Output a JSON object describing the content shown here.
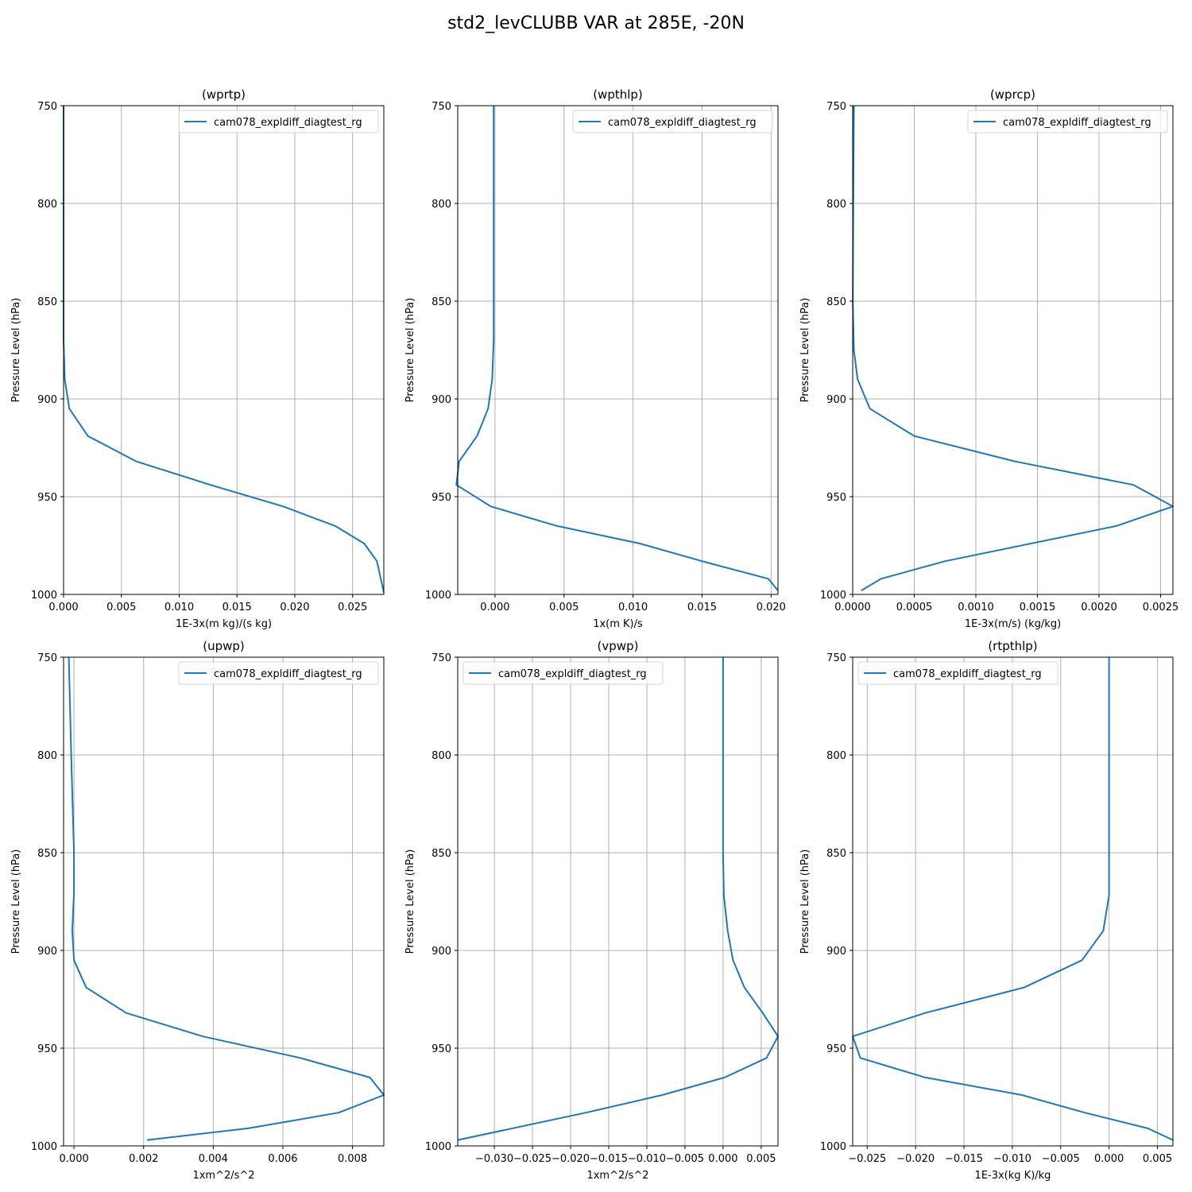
{
  "figure": {
    "title": "std2_levCLUBB VAR at 285E, -20N",
    "line_color": "#1f77b4"
  },
  "chart_data": [
    {
      "type": "line",
      "title": "(wprtp)",
      "xlabel": "1E-3x(m kg)/(s kg)",
      "ylabel": "Pressure Level (hPa)",
      "xlim": [
        0,
        0.0277
      ],
      "ylim": [
        1000,
        750
      ],
      "xticks": [
        0,
        0.005,
        0.01,
        0.015,
        0.02,
        0.025
      ],
      "xtick_labels": [
        "0.000",
        "0.005",
        "0.010",
        "0.015",
        "0.020",
        "0.025"
      ],
      "yticks": [
        750,
        800,
        850,
        900,
        950,
        1000
      ],
      "ytick_labels": [
        "750",
        "800",
        "850",
        "900",
        "950",
        "1000"
      ],
      "grid": true,
      "legend_position": "upper-right",
      "series": [
        {
          "name": "cam078_expldiff_diagtest_rg",
          "x": [
            0,
            0,
            0,
            0,
            0.0001,
            0.0005,
            0.0021,
            0.0063,
            0.0127,
            0.019,
            0.0235,
            0.026,
            0.0271,
            0.0277
          ],
          "y": [
            750,
            800,
            850,
            870,
            890,
            905,
            919,
            932,
            944,
            955,
            965,
            974,
            983,
            999
          ]
        }
      ]
    },
    {
      "type": "line",
      "title": "(wpthlp)",
      "xlabel": "1x(m K)/s",
      "ylabel": "Pressure Level (hPa)",
      "xlim": [
        -0.0027,
        0.0205
      ],
      "ylim": [
        1000,
        750
      ],
      "xticks": [
        0,
        0.005,
        0.01,
        0.015,
        0.02
      ],
      "xtick_labels": [
        "0.000",
        "0.005",
        "0.010",
        "0.015",
        "0.020"
      ],
      "yticks": [
        750,
        800,
        850,
        900,
        950,
        1000
      ],
      "ytick_labels": [
        "750",
        "800",
        "850",
        "900",
        "950",
        "1000"
      ],
      "grid": true,
      "legend_position": "upper-right",
      "series": [
        {
          "name": "cam078_expldiff_diagtest_rg",
          "x": [
            -0.0001,
            -0.0001,
            -0.0001,
            -0.0001,
            -0.0002,
            -0.0005,
            -0.0013,
            -0.0026,
            -0.0028,
            -0.0003,
            0.0045,
            0.0105,
            0.015,
            0.0198,
            0.0205
          ],
          "y": [
            750,
            800,
            850,
            870,
            890,
            905,
            919,
            932,
            944,
            955,
            965,
            974,
            983,
            992,
            998
          ]
        }
      ]
    },
    {
      "type": "line",
      "title": "(wprcp)",
      "xlabel": "1E-3x(m/s) (kg/kg)",
      "ylabel": "Pressure Level (hPa)",
      "xlim": [
        0,
        0.0026
      ],
      "ylim": [
        1000,
        750
      ],
      "xticks": [
        0,
        0.0005,
        0.001,
        0.0015,
        0.002,
        0.0025
      ],
      "xtick_labels": [
        "0.0000",
        "0.0005",
        "0.0010",
        "0.0015",
        "0.0020",
        "0.0025"
      ],
      "yticks": [
        750,
        800,
        850,
        900,
        950,
        1000
      ],
      "ytick_labels": [
        "750",
        "800",
        "850",
        "900",
        "950",
        "1000"
      ],
      "grid": true,
      "legend_position": "upper-right",
      "series": [
        {
          "name": "cam078_expldiff_diagtest_rg",
          "x": [
            1e-05,
            5e-06,
            1e-06,
            1e-05,
            4e-05,
            0.00014,
            0.0005,
            0.00132,
            0.00228,
            0.0026,
            0.00214,
            0.00075,
            0.00023,
            7e-05
          ],
          "y": [
            750,
            800,
            850,
            875,
            890,
            905,
            919,
            932,
            944,
            955,
            965,
            983,
            992,
            998
          ]
        }
      ]
    },
    {
      "type": "line",
      "title": "(upwp)",
      "xlabel": "1xm^2/s^2",
      "ylabel": "Pressure Level (hPa)",
      "xlim": [
        -0.0003,
        0.0089
      ],
      "ylim": [
        1000,
        750
      ],
      "xticks": [
        0,
        0.002,
        0.004,
        0.006,
        0.008
      ],
      "xtick_labels": [
        "0.000",
        "0.002",
        "0.004",
        "0.006",
        "0.008"
      ],
      "yticks": [
        750,
        800,
        850,
        900,
        950,
        1000
      ],
      "ytick_labels": [
        "750",
        "800",
        "850",
        "900",
        "950",
        "1000"
      ],
      "grid": true,
      "legend_position": "upper-right",
      "series": [
        {
          "name": "cam078_expldiff_diagtest_rg",
          "x": [
            -0.00015,
            -8e-05,
            0,
            0,
            -5e-05,
            0,
            0.00035,
            0.0015,
            0.0037,
            0.0065,
            0.0085,
            0.0089,
            0.0076,
            0.005,
            0.0021
          ],
          "y": [
            750,
            800,
            850,
            870,
            890,
            905,
            919,
            932,
            944,
            955,
            965,
            974,
            983,
            991,
            997
          ]
        }
      ]
    },
    {
      "type": "line",
      "title": "(vpwp)",
      "xlabel": "1xm^2/s^2",
      "ylabel": "Pressure Level (hPa)",
      "xlim": [
        -0.0348,
        0.0072
      ],
      "ylim": [
        1000,
        750
      ],
      "xticks": [
        -0.03,
        -0.025,
        -0.02,
        -0.015,
        -0.01,
        -0.005,
        0,
        0.005
      ],
      "xtick_labels": [
        "−0.030",
        "−0.025",
        "−0.020",
        "−0.015",
        "−0.010",
        "−0.005",
        "0.000",
        "0.005"
      ],
      "yticks": [
        750,
        800,
        850,
        900,
        950,
        1000
      ],
      "ytick_labels": [
        "750",
        "800",
        "850",
        "900",
        "950",
        "1000"
      ],
      "grid": true,
      "legend_position": "upper-left",
      "series": [
        {
          "name": "cam078_expldiff_diagtest_rg",
          "x": [
            0,
            0,
            0,
            0.0001,
            0.0006,
            0.0013,
            0.0028,
            0.0052,
            0.0072,
            0.0057,
            0.0002,
            -0.008,
            -0.018,
            -0.0348
          ],
          "y": [
            750,
            800,
            850,
            872,
            890,
            905,
            919,
            932,
            944,
            955,
            965,
            974,
            983,
            997
          ]
        }
      ]
    },
    {
      "type": "line",
      "title": "(rtpthlp)",
      "xlabel": "1E-3x(kg K)/kg",
      "ylabel": "Pressure Level (hPa)",
      "xlim": [
        -0.0265,
        0.0066
      ],
      "ylim": [
        1000,
        750
      ],
      "xticks": [
        -0.025,
        -0.02,
        -0.015,
        -0.01,
        -0.005,
        0,
        0.005
      ],
      "xtick_labels": [
        "−0.025",
        "−0.020",
        "−0.015",
        "−0.010",
        "−0.005",
        "0.000",
        "0.005"
      ],
      "yticks": [
        750,
        800,
        850,
        900,
        950,
        1000
      ],
      "ytick_labels": [
        "750",
        "800",
        "850",
        "900",
        "950",
        "1000"
      ],
      "grid": true,
      "legend_position": "upper-left",
      "series": [
        {
          "name": "cam078_expldiff_diagtest_rg",
          "x": [
            0,
            0,
            0,
            0,
            -0.0006,
            -0.0028,
            -0.0088,
            -0.019,
            -0.0265,
            -0.0257,
            -0.019,
            -0.009,
            -0.0025,
            0.004,
            0.0066
          ],
          "y": [
            750,
            800,
            850,
            872,
            890,
            905,
            919,
            932,
            944,
            955,
            965,
            974,
            983,
            991,
            997
          ]
        }
      ]
    }
  ]
}
